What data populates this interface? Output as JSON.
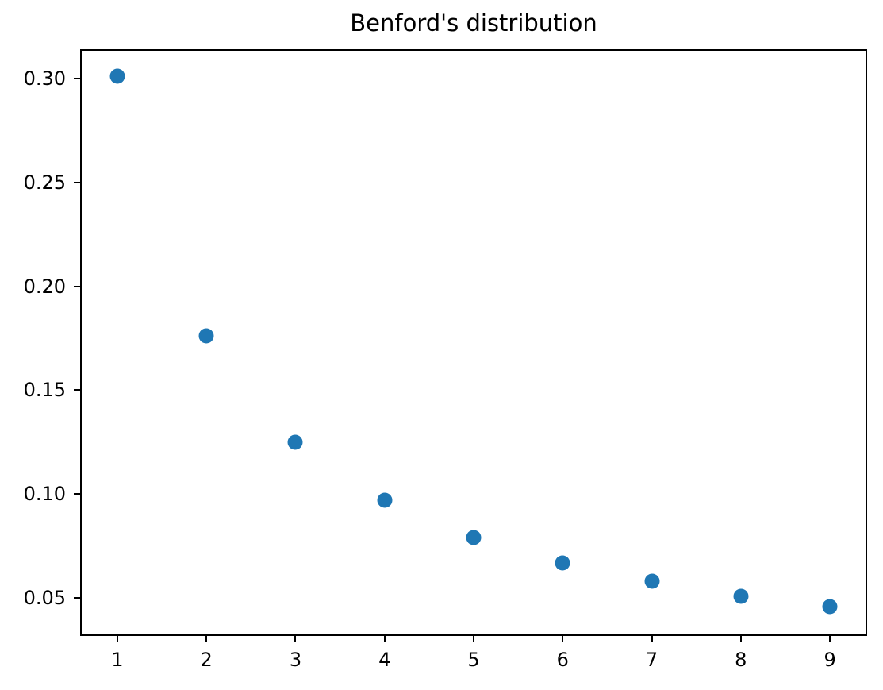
{
  "chart_data": {
    "type": "scatter",
    "title": "Benford's distribution",
    "x": [
      1,
      2,
      3,
      4,
      5,
      6,
      7,
      8,
      9
    ],
    "y": [
      0.301,
      0.176,
      0.125,
      0.097,
      0.079,
      0.067,
      0.058,
      0.051,
      0.046
    ],
    "xlabel": "",
    "ylabel": "",
    "xlim": [
      0.6,
      9.4
    ],
    "ylim": [
      0.0325,
      0.3133
    ],
    "xticks": [
      {
        "value": 1,
        "label": "1"
      },
      {
        "value": 2,
        "label": "2"
      },
      {
        "value": 3,
        "label": "3"
      },
      {
        "value": 4,
        "label": "4"
      },
      {
        "value": 5,
        "label": "5"
      },
      {
        "value": 6,
        "label": "6"
      },
      {
        "value": 7,
        "label": "7"
      },
      {
        "value": 8,
        "label": "8"
      },
      {
        "value": 9,
        "label": "9"
      }
    ],
    "yticks": [
      {
        "value": 0.05,
        "label": "0.05"
      },
      {
        "value": 0.1,
        "label": "0.10"
      },
      {
        "value": 0.15,
        "label": "0.15"
      },
      {
        "value": 0.2,
        "label": "0.20"
      },
      {
        "value": 0.25,
        "label": "0.25"
      },
      {
        "value": 0.3,
        "label": "0.30"
      }
    ],
    "marker_color": "#1f77b4",
    "grid": false,
    "legend": null
  }
}
